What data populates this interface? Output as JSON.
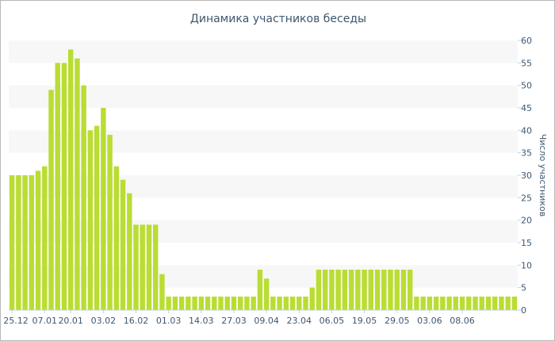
{
  "chart_data": {
    "type": "bar",
    "title": "Динамика участников беседы",
    "xlabel": "",
    "ylabel": "Число участников",
    "ylim": [
      0,
      60
    ],
    "y_ticks": [
      0,
      5,
      10,
      15,
      20,
      25,
      30,
      35,
      40,
      45,
      50,
      55,
      60
    ],
    "y_axis_position": "right",
    "grid": "alternating horizontal bands",
    "bar_color": "#b9dd33",
    "x_tick_labels": [
      "25.12",
      "07.01",
      "20.01",
      "03.02",
      "16.02",
      "01.03",
      "14.03",
      "27.03",
      "09.04",
      "23.04",
      "06.05",
      "19.05",
      "29.05",
      "03.06",
      "08.06"
    ],
    "x_tick_bar_index": [
      0,
      5,
      9,
      14,
      19,
      24,
      29,
      34,
      39,
      44,
      49,
      54,
      59,
      64,
      69
    ],
    "values": [
      30,
      30,
      30,
      30,
      31,
      32,
      49,
      55,
      55,
      58,
      56,
      50,
      40,
      41,
      45,
      39,
      32,
      29,
      26,
      19,
      19,
      19,
      19,
      8,
      3,
      3,
      3,
      3,
      3,
      3,
      3,
      3,
      3,
      3,
      3,
      3,
      3,
      3,
      9,
      7,
      3,
      3,
      3,
      3,
      3,
      3,
      5,
      9,
      9,
      9,
      9,
      9,
      9,
      9,
      9,
      9,
      9,
      9,
      9,
      9,
      9,
      9,
      3,
      3,
      3,
      3,
      3,
      3,
      3,
      3,
      3,
      3,
      3,
      3,
      3,
      3,
      3,
      3
    ]
  }
}
